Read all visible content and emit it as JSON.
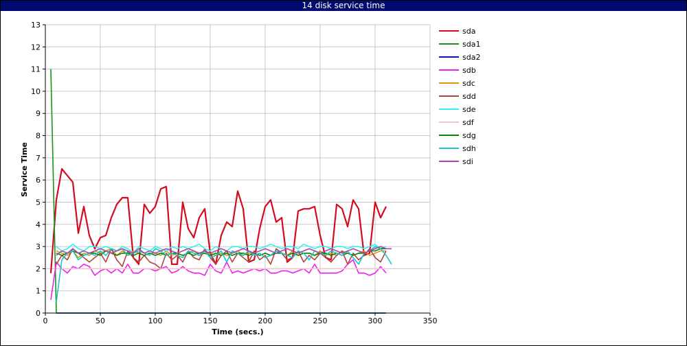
{
  "window": {
    "title": "14 disk service time"
  },
  "chart_data": {
    "type": "line",
    "title": "14 disk service time",
    "xlabel": "Time (secs.)",
    "ylabel": "Service Time",
    "xlim": [
      0,
      350
    ],
    "ylim": [
      0,
      13
    ],
    "xticks": [
      0,
      50,
      100,
      150,
      200,
      250,
      300,
      350
    ],
    "yticks": [
      0,
      1,
      2,
      3,
      4,
      5,
      6,
      7,
      8,
      9,
      10,
      11,
      12,
      13
    ],
    "grid": true,
    "legend_position": "right",
    "x": [
      5,
      10,
      15,
      20,
      25,
      30,
      35,
      40,
      45,
      50,
      55,
      60,
      65,
      70,
      75,
      80,
      85,
      90,
      95,
      100,
      105,
      110,
      115,
      120,
      125,
      130,
      135,
      140,
      145,
      150,
      155,
      160,
      165,
      170,
      175,
      180,
      185,
      190,
      195,
      200,
      205,
      210,
      215,
      220,
      225,
      230,
      235,
      240,
      245,
      250,
      255,
      260,
      265,
      270,
      275,
      280,
      285,
      290,
      295,
      300,
      305,
      310,
      315
    ],
    "series": [
      {
        "name": "sda",
        "color": "#d40a1e",
        "values": [
          1.8,
          5.1,
          6.5,
          6.2,
          5.9,
          3.6,
          4.8,
          3.5,
          2.9,
          3.4,
          3.5,
          4.3,
          4.9,
          5.2,
          5.2,
          2.5,
          2.2,
          4.9,
          4.5,
          4.8,
          5.6,
          5.7,
          2.2,
          2.2,
          5.0,
          3.8,
          3.4,
          4.3,
          4.7,
          2.7,
          2.2,
          3.5,
          4.1,
          3.9,
          5.5,
          4.7,
          2.3,
          2.4,
          3.8,
          4.8,
          5.1,
          4.1,
          4.3,
          2.3,
          2.5,
          4.6,
          4.7,
          4.7,
          4.8,
          3.5,
          2.5,
          2.4,
          4.9,
          4.7,
          3.9,
          5.1,
          4.7,
          2.6,
          2.7,
          5.0,
          4.3,
          4.8,
          null
        ]
      },
      {
        "name": "sda1",
        "color": "#14961e",
        "values": [
          11.0,
          0.0,
          0.0,
          0.0,
          0.0,
          0.0,
          0.0,
          0.0,
          0.0,
          0.0,
          0.0,
          0.0,
          0.0,
          0.0,
          0.0,
          0.0,
          0.0,
          0.0,
          0.0,
          0.0,
          0.0,
          0.0,
          0.0,
          0.0,
          0.0,
          0.0,
          0.0,
          0.0,
          0.0,
          0.0,
          0.0,
          0.0,
          0.0,
          0.0,
          0.0,
          0.0,
          0.0,
          0.0,
          0.0,
          0.0,
          0.0,
          0.0,
          0.0,
          0.0,
          0.0,
          0.0,
          0.0,
          0.0,
          0.0,
          0.0,
          0.0,
          0.0,
          0.0,
          0.0,
          0.0,
          0.0,
          0.0,
          0.0,
          0.0,
          0.0,
          0.0,
          0.0,
          null
        ]
      },
      {
        "name": "sda2",
        "color": "#0a14b4",
        "values": [
          null,
          0.0,
          0.0,
          0.0,
          0.0,
          0.0,
          0.0,
          0.0,
          0.0,
          0.0,
          0.0,
          0.0,
          0.0,
          0.0,
          0.0,
          0.0,
          0.0,
          0.0,
          0.0,
          0.0,
          0.0,
          0.0,
          0.0,
          0.0,
          0.0,
          0.0,
          0.0,
          0.0,
          0.0,
          0.0,
          0.0,
          0.0,
          0.0,
          0.0,
          0.0,
          0.0,
          0.0,
          0.0,
          0.0,
          0.0,
          0.0,
          0.0,
          0.0,
          0.0,
          0.0,
          0.0,
          0.0,
          0.0,
          0.0,
          0.0,
          0.0,
          0.0,
          0.0,
          0.0,
          0.0,
          0.0,
          0.0,
          0.0,
          0.0,
          0.0,
          0.0,
          0.0,
          null
        ]
      },
      {
        "name": "sdb",
        "color": "#f01ef0",
        "values": [
          0.6,
          2.3,
          2.0,
          1.8,
          2.1,
          2.0,
          2.2,
          2.1,
          1.7,
          1.9,
          2.0,
          1.8,
          2.0,
          1.8,
          2.2,
          1.8,
          1.8,
          2.0,
          2.0,
          1.9,
          2.0,
          2.1,
          1.8,
          1.9,
          2.1,
          1.9,
          1.8,
          1.8,
          1.7,
          2.2,
          1.9,
          1.8,
          2.3,
          1.8,
          1.9,
          1.8,
          1.9,
          2.0,
          1.9,
          2.0,
          1.8,
          1.8,
          1.9,
          1.9,
          1.8,
          1.9,
          2.0,
          1.8,
          2.2,
          1.8,
          1.8,
          1.8,
          1.8,
          1.9,
          2.2,
          2.4,
          1.8,
          1.8,
          1.7,
          1.8,
          2.1,
          1.8,
          null
        ]
      },
      {
        "name": "sdc",
        "color": "#e1960a",
        "values": [
          null,
          2.8,
          2.7,
          2.6,
          2.8,
          2.5,
          2.7,
          2.6,
          2.8,
          2.7,
          2.8,
          2.9,
          2.6,
          2.8,
          2.6,
          2.8,
          2.7,
          2.6,
          2.7,
          2.7,
          2.6,
          2.8,
          2.6,
          2.7,
          2.6,
          2.7,
          2.8,
          2.6,
          2.7,
          2.7,
          2.6,
          2.7,
          2.6,
          2.7,
          2.8,
          2.6,
          2.7,
          2.7,
          2.6,
          2.7,
          2.6,
          2.8,
          2.7,
          2.6,
          2.8,
          2.6,
          2.7,
          2.7,
          2.6,
          2.8,
          2.6,
          2.7,
          2.6,
          2.8,
          2.7,
          2.6,
          2.7,
          2.8,
          2.6,
          2.7,
          2.8,
          2.8,
          null
        ]
      },
      {
        "name": "sdd",
        "color": "#b4413c",
        "values": [
          null,
          2.2,
          2.6,
          2.4,
          2.9,
          2.7,
          2.5,
          2.3,
          2.5,
          2.7,
          2.3,
          2.9,
          2.4,
          2.1,
          2.8,
          2.5,
          2.3,
          2.6,
          2.3,
          2.2,
          2.0,
          2.7,
          2.4,
          2.6,
          2.3,
          2.8,
          2.5,
          2.4,
          2.9,
          2.5,
          2.2,
          2.6,
          2.8,
          2.3,
          2.7,
          2.5,
          2.3,
          2.8,
          2.4,
          2.6,
          2.2,
          2.9,
          2.7,
          2.4,
          2.5,
          2.8,
          2.3,
          2.6,
          2.4,
          2.7,
          2.5,
          2.3,
          2.6,
          2.8,
          2.2,
          2.7,
          2.4,
          2.6,
          2.9,
          2.5,
          2.3,
          2.8,
          null
        ]
      },
      {
        "name": "sde",
        "color": "#32f0f0",
        "values": [
          null,
          3.0,
          2.8,
          2.9,
          3.1,
          2.9,
          2.8,
          3.0,
          3.0,
          2.9,
          3.0,
          2.9,
          2.8,
          3.0,
          2.9,
          2.7,
          3.0,
          2.9,
          2.8,
          3.0,
          2.9,
          2.8,
          3.0,
          2.9,
          3.0,
          2.9,
          3.0,
          3.1,
          2.9,
          2.8,
          3.0,
          2.9,
          2.8,
          3.0,
          3.0,
          2.9,
          3.0,
          3.0,
          2.9,
          3.0,
          3.1,
          3.0,
          2.9,
          3.0,
          3.0,
          2.9,
          3.1,
          3.0,
          2.9,
          3.0,
          3.0,
          2.9,
          3.0,
          3.0,
          2.9,
          3.0,
          3.0,
          2.9,
          3.0,
          3.1,
          2.9,
          3.0,
          null
        ]
      },
      {
        "name": "sdf",
        "color": "#f0c8c8",
        "values": [
          null,
          2.0,
          2.0,
          2.0,
          2.0,
          2.0,
          2.0,
          2.0,
          2.0,
          2.0,
          2.0,
          2.0,
          2.0,
          2.0,
          2.0,
          2.0,
          2.0,
          2.0,
          2.0,
          2.0,
          2.0,
          2.0,
          2.0,
          2.0,
          2.0,
          2.0,
          2.0,
          2.0,
          2.0,
          2.0,
          2.0,
          2.0,
          2.0,
          2.0,
          2.0,
          2.0,
          2.0,
          2.0,
          2.0,
          2.0,
          2.0,
          2.0,
          2.0,
          2.0,
          2.0,
          2.0,
          2.0,
          2.0,
          2.0,
          2.0,
          2.0,
          2.0,
          2.0,
          2.0,
          2.0,
          2.0,
          2.0,
          2.0,
          2.0,
          2.0,
          2.0,
          2.0,
          null
        ]
      },
      {
        "name": "sdg",
        "color": "#0a820a",
        "values": [
          null,
          2.7,
          2.6,
          2.7,
          2.8,
          2.7,
          2.6,
          2.7,
          2.7,
          2.6,
          2.8,
          2.7,
          2.6,
          2.7,
          2.7,
          2.6,
          2.7,
          2.6,
          2.7,
          2.6,
          2.7,
          2.6,
          2.7,
          2.7,
          2.6,
          2.7,
          2.6,
          2.7,
          2.7,
          2.6,
          2.7,
          2.6,
          2.7,
          2.6,
          2.7,
          2.7,
          2.6,
          2.7,
          2.6,
          2.7,
          2.6,
          2.7,
          2.7,
          2.6,
          2.7,
          2.6,
          2.7,
          2.7,
          2.6,
          2.7,
          2.7,
          2.6,
          2.7,
          2.6,
          2.7,
          2.6,
          2.7,
          2.7,
          2.8,
          2.8,
          2.9,
          2.9,
          null
        ]
      },
      {
        "name": "sdh",
        "color": "#14c8c8",
        "values": [
          null,
          0.5,
          2.4,
          2.7,
          2.8,
          2.4,
          2.6,
          2.7,
          2.6,
          2.8,
          2.6,
          2.9,
          2.8,
          2.9,
          2.6,
          2.7,
          2.8,
          2.7,
          2.6,
          2.9,
          2.8,
          2.6,
          2.7,
          2.6,
          2.5,
          2.8,
          2.7,
          2.6,
          2.8,
          2.5,
          2.6,
          2.8,
          2.3,
          2.8,
          2.7,
          2.6,
          2.8,
          2.6,
          2.7,
          2.5,
          2.6,
          2.8,
          2.7,
          2.6,
          2.5,
          2.8,
          2.7,
          2.4,
          2.8,
          2.7,
          2.6,
          2.8,
          2.7,
          2.6,
          2.8,
          2.5,
          2.2,
          2.7,
          2.8,
          3.0,
          2.9,
          2.6,
          2.2
        ]
      },
      {
        "name": "sdi",
        "color": "#aa46aa",
        "values": [
          null,
          2.6,
          2.8,
          2.7,
          2.9,
          2.7,
          2.8,
          2.7,
          2.8,
          2.9,
          2.8,
          2.7,
          2.8,
          2.9,
          2.8,
          2.7,
          2.9,
          2.7,
          2.8,
          2.7,
          2.8,
          2.9,
          2.8,
          2.7,
          2.8,
          2.9,
          2.8,
          2.7,
          2.8,
          2.7,
          2.8,
          2.9,
          2.8,
          2.7,
          2.8,
          2.9,
          2.8,
          2.7,
          2.8,
          2.9,
          2.8,
          2.7,
          2.8,
          2.9,
          2.8,
          2.7,
          2.8,
          2.9,
          2.8,
          2.7,
          2.8,
          2.9,
          2.8,
          2.7,
          2.8,
          2.9,
          2.8,
          2.7,
          2.8,
          2.9,
          3.0,
          2.9,
          2.9
        ]
      }
    ]
  }
}
